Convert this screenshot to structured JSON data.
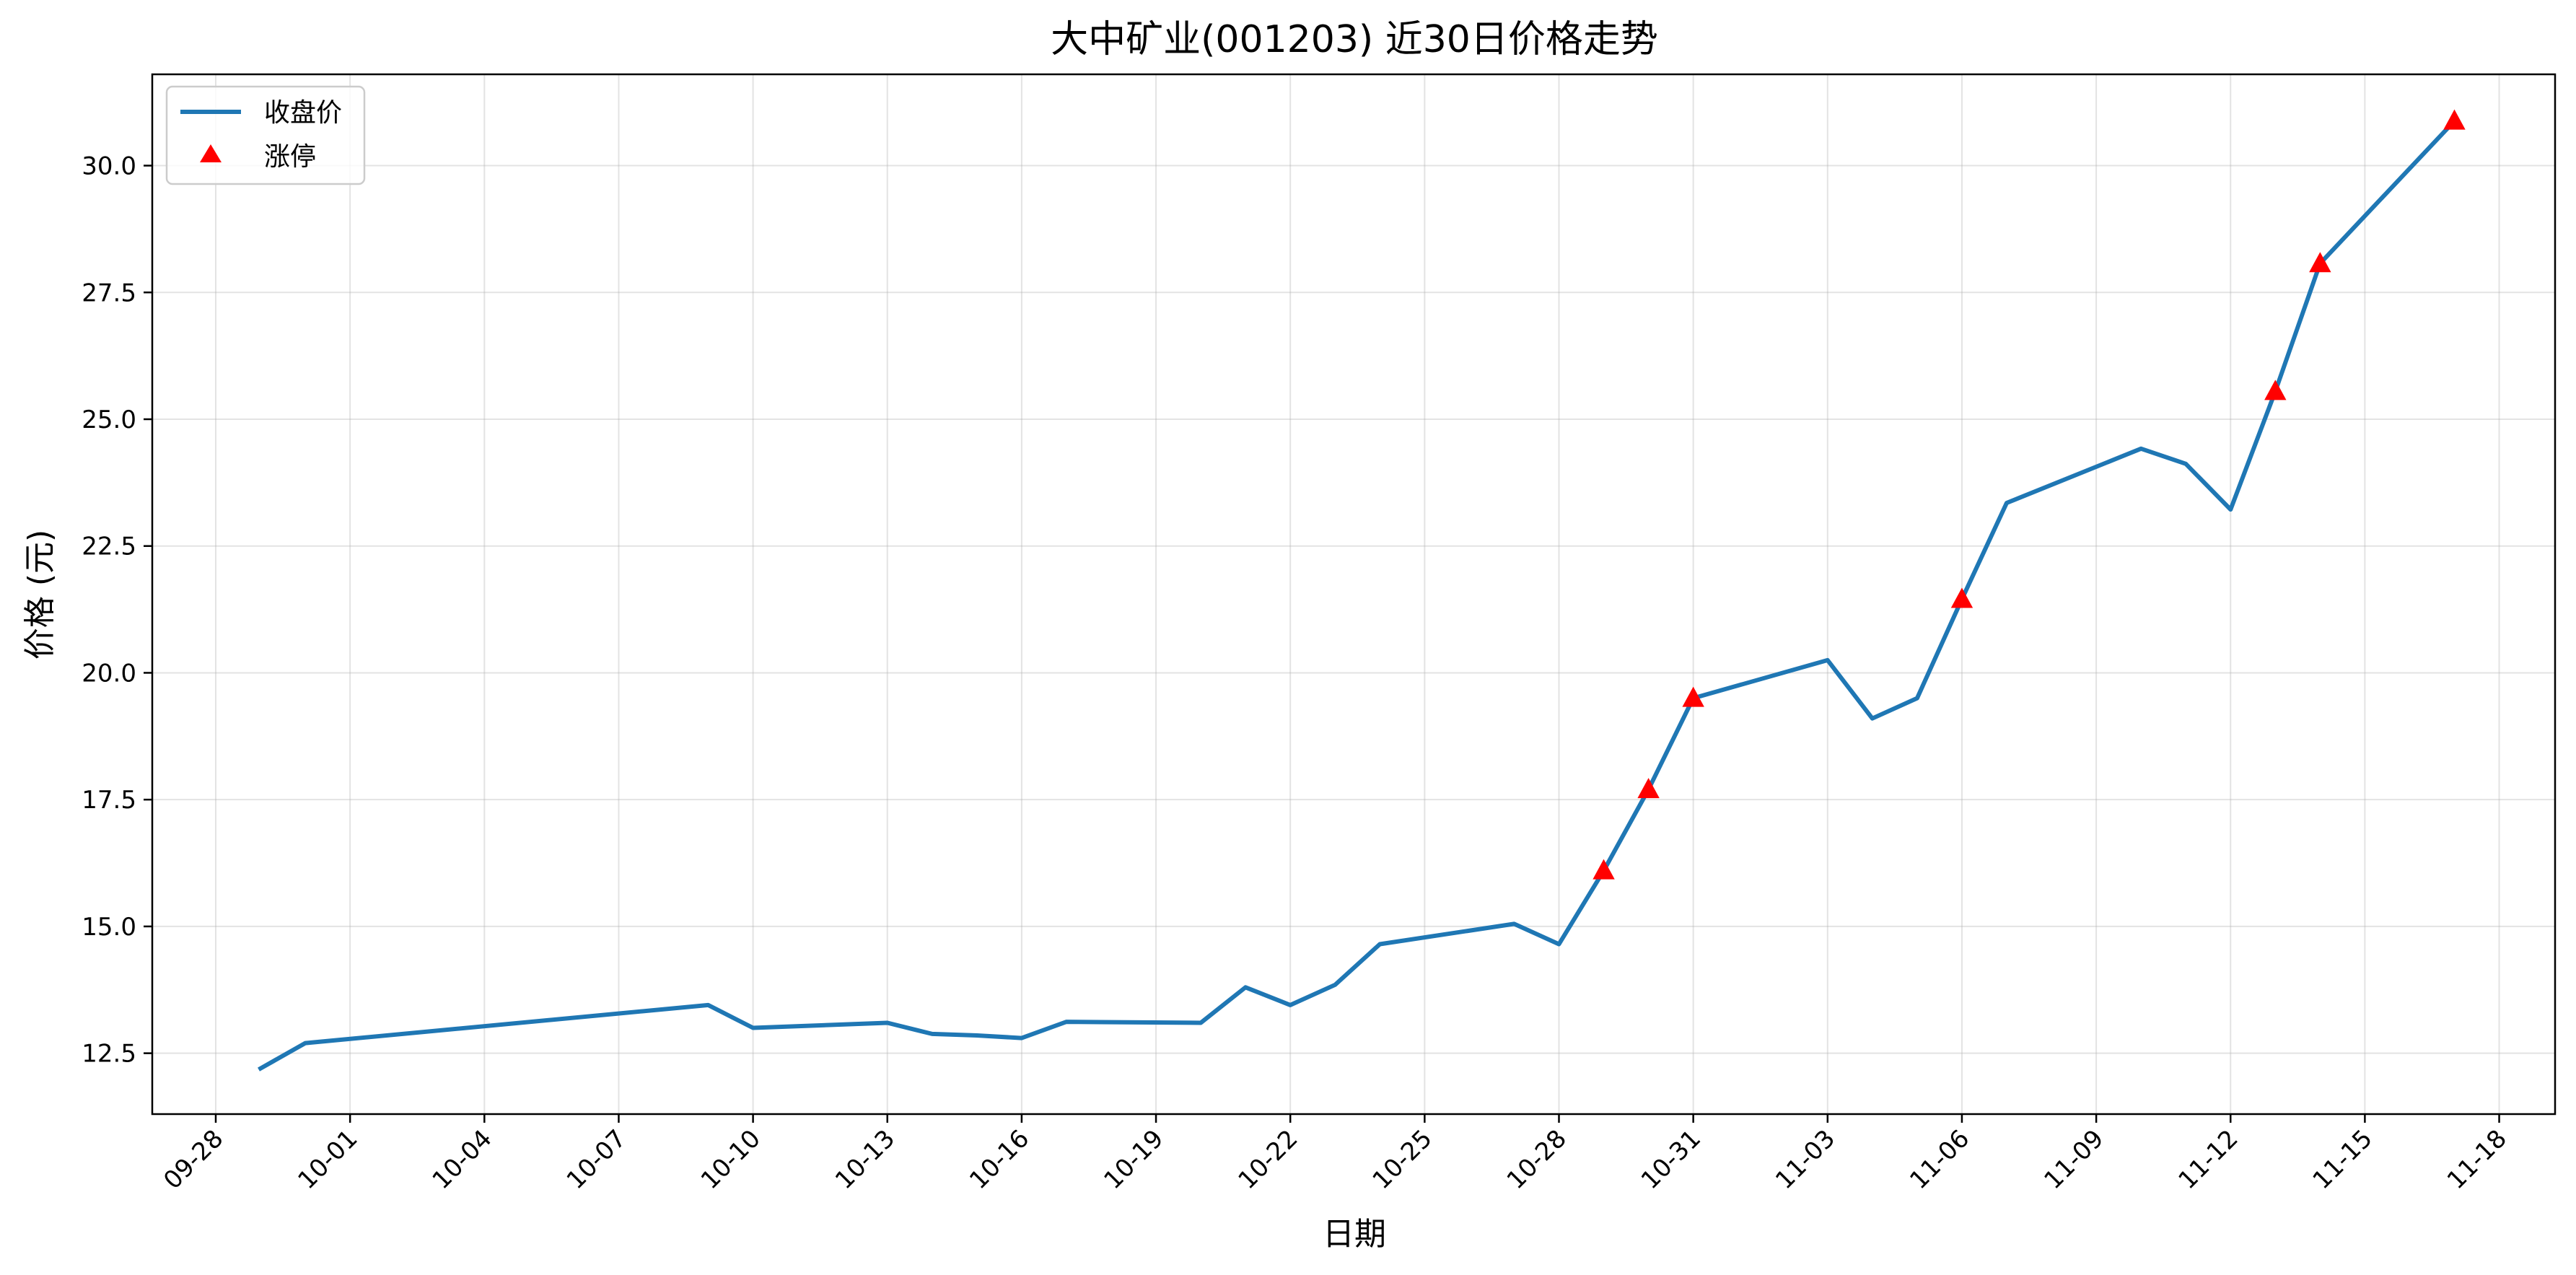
{
  "chart_data": {
    "type": "line",
    "title": "大中矿业(001203) 近30日价格走势",
    "xlabel": "日期",
    "ylabel": "价格 (元)",
    "grid": true,
    "legend_position": "top-left",
    "x_ticks": [
      "09-28",
      "10-01",
      "10-04",
      "10-07",
      "10-10",
      "10-13",
      "10-16",
      "10-19",
      "10-22",
      "10-25",
      "10-28",
      "10-31",
      "11-03",
      "11-06",
      "11-09",
      "11-12",
      "11-15",
      "11-18"
    ],
    "y_ticks": [
      "12.5",
      "15.0",
      "17.5",
      "20.0",
      "22.5",
      "25.0",
      "27.5",
      "30.0"
    ],
    "ylim": [
      11.3,
      31.8
    ],
    "series": [
      {
        "name": "收盘价",
        "color": "#1f77b4",
        "x": [
          "09-29",
          "09-30",
          "10-09",
          "10-10",
          "10-13",
          "10-14",
          "10-15",
          "10-16",
          "10-17",
          "10-20",
          "10-21",
          "10-22",
          "10-23",
          "10-24",
          "10-27",
          "10-28",
          "10-29",
          "10-30",
          "10-31",
          "11-03",
          "11-04",
          "11-05",
          "11-06",
          "11-07",
          "11-10",
          "11-11",
          "11-12",
          "11-13",
          "11-14",
          "11-17"
        ],
        "y": [
          12.2,
          12.7,
          13.45,
          13.0,
          13.1,
          12.88,
          12.85,
          12.8,
          13.12,
          13.1,
          13.8,
          13.45,
          13.85,
          14.65,
          15.05,
          14.65,
          16.1,
          17.7,
          19.5,
          20.25,
          19.1,
          19.5,
          21.45,
          23.35,
          24.42,
          24.12,
          23.22,
          25.55,
          28.07,
          30.88
        ]
      },
      {
        "name": "涨停",
        "color": "#ff0000",
        "marker": "triangle",
        "x": [
          "10-29",
          "10-30",
          "10-31",
          "11-06",
          "11-13",
          "11-14",
          "11-17"
        ],
        "y": [
          16.1,
          17.7,
          19.5,
          21.45,
          25.55,
          28.07,
          30.88
        ]
      }
    ]
  }
}
